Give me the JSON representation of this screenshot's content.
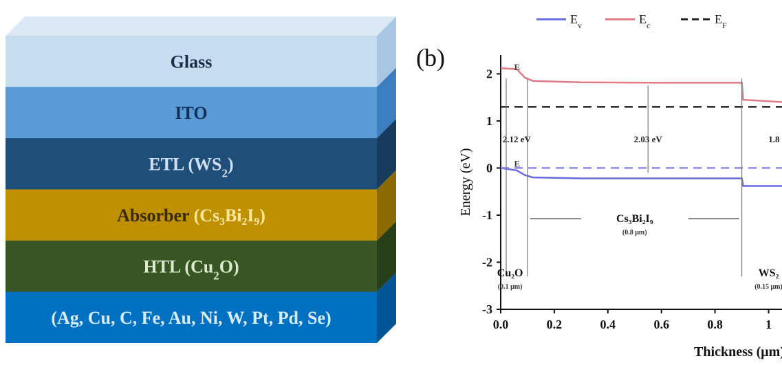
{
  "stack": {
    "layers": [
      {
        "label": "Glass",
        "sub": "",
        "tail": "",
        "color": "#c6dcef",
        "side": "#a9c6e2",
        "text_color": "#1c2a4a",
        "sub_color": "#1c2a4a"
      },
      {
        "label": "ITO",
        "sub": "",
        "tail": "",
        "color": "#5b9bd5",
        "side": "#3c7fc0",
        "text_color": "#10305c",
        "sub_color": "#10305c"
      },
      {
        "label": "ETL (WS",
        "sub": "2",
        "tail": ")",
        "color": "#1f4e79",
        "side": "#173b5c",
        "text_color": "#cfe0f4",
        "sub_color": "#cfe0f4"
      },
      {
        "label": "Absorber ",
        "sub": "",
        "tail": "(Cs₃Bi₂I₉)",
        "color": "#bf9000",
        "side": "#8c6a00",
        "text_color": "#3a2a00",
        "sub_color": "#ffe7a0"
      },
      {
        "label": "HTL (Cu",
        "sub": "2",
        "tail": "O)",
        "color": "#375623",
        "side": "#27401a",
        "text_color": "#dce9cf",
        "sub_color": "#dce9cf"
      },
      {
        "label": "(Ag, Cu, C, Fe, Au, Ni, W, Pt, Pd, Se)",
        "sub": "",
        "tail": "",
        "color": "#0070c0",
        "side": "#005596",
        "text_color": "#d9ecff",
        "sub_color": "#d9ecff"
      }
    ]
  },
  "band_diagram": {
    "panel_label": "(b)",
    "legend": [
      {
        "name": "E",
        "sub": "v",
        "color": "#6a6ae0",
        "dash": "solid"
      },
      {
        "name": "E",
        "sub": "c",
        "color": "#e07a86",
        "dash": "solid"
      },
      {
        "name": "E",
        "sub": "F",
        "color": "#222222",
        "dash": "dashed"
      }
    ],
    "ylabel": "Energy (eV)",
    "xlabel": "Thickness (μm)",
    "xticks": [
      "0.0",
      "0.2",
      "0.4",
      "0.6",
      "0.8",
      "1"
    ],
    "yticks": [
      "2",
      "1",
      "0",
      "-1",
      "-2",
      "-3"
    ],
    "gap_labels": [
      "2.12 eV",
      "2.03 eV",
      "1.8"
    ],
    "region_labels": [
      {
        "name": "Cs₃Bi₂I₉",
        "thickness": "(0.8 μm)"
      },
      {
        "name": "Cu₂O",
        "thickness": "(0.1 μm)"
      },
      {
        "name": "WS₂",
        "thickness": "(0.15 μm)"
      }
    ],
    "level_tags": [
      "E",
      "E"
    ]
  },
  "chart_data": {
    "type": "line",
    "title": "",
    "xlabel": "Thickness (μm)",
    "ylabel": "Energy (eV)",
    "xlim": [
      0.0,
      1.05
    ],
    "ylim": [
      -3,
      2.4
    ],
    "series": [
      {
        "name": "Ec",
        "x": [
          0.0,
          0.06,
          0.09,
          0.12,
          0.3,
          0.6,
          0.9,
          0.905,
          1.05
        ],
        "y": [
          2.12,
          2.1,
          1.92,
          1.85,
          1.82,
          1.81,
          1.81,
          1.45,
          1.4
        ]
      },
      {
        "name": "Ev",
        "x": [
          0.0,
          0.06,
          0.09,
          0.12,
          0.3,
          0.6,
          0.9,
          0.905,
          1.05
        ],
        "y": [
          0.0,
          -0.05,
          -0.15,
          -0.2,
          -0.22,
          -0.22,
          -0.22,
          -0.38,
          -0.38
        ]
      },
      {
        "name": "Ef",
        "x": [
          0.0,
          1.05
        ],
        "y": [
          1.3,
          1.3
        ]
      },
      {
        "name": "Ef",
        "x": [
          0.0,
          1.05
        ],
        "y": [
          0.0,
          0.0
        ]
      }
    ]
  }
}
